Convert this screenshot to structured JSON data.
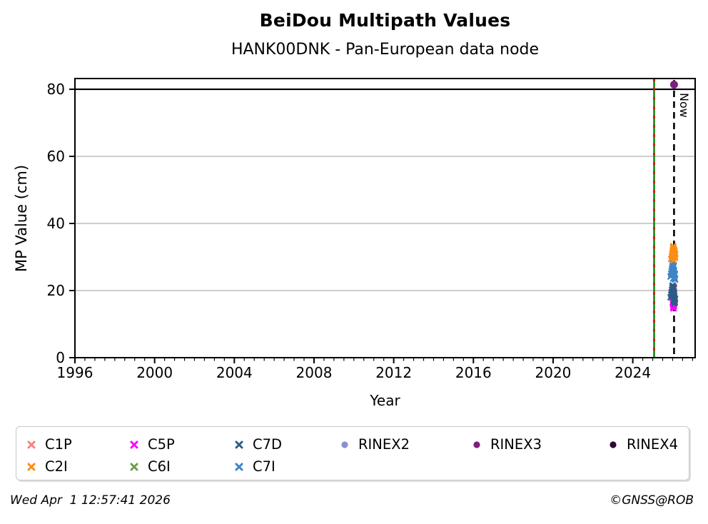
{
  "title": "BeiDou Multipath Values",
  "subtitle": "HANK00DNK - Pan-European data node",
  "footer": {
    "timestamp": "Wed Apr  1 12:57:41 2026",
    "copyright": "©GNSS@ROB"
  },
  "legend": {
    "order": [
      "C1P",
      "C5P",
      "C7D",
      "RINEX2",
      "RINEX3",
      "RINEX4",
      "C2I",
      "C6I",
      "C7I"
    ]
  },
  "chart_data": {
    "type": "scatter",
    "title": "BeiDou Multipath Values",
    "subtitle": "HANK00DNK - Pan-European data node",
    "xlabel": "Year",
    "ylabel": "MP Value (cm)",
    "xlim": [
      1996,
      2027.13
    ],
    "ylim": [
      0,
      83.2
    ],
    "xticks": [
      1996,
      2000,
      2004,
      2008,
      2012,
      2016,
      2020,
      2024
    ],
    "yticks": [
      0,
      20,
      40,
      60,
      80
    ],
    "minor_xtick_step": 0.5,
    "grid": "horizontal-gray-at-20-40-60",
    "threshold_line_y": 80,
    "vlines": [
      {
        "name": "data-start-line",
        "x": 2025.07,
        "style": "solid-with-red-dashes",
        "color_solid": "#138713",
        "color_dash": "#CC1111"
      },
      {
        "name": "now-line",
        "x": 2026.07,
        "style": "dashed",
        "color": "#000000",
        "label": "Now"
      }
    ],
    "series": [
      {
        "name": "C1P",
        "marker": "x",
        "color": "#F3837E",
        "points": [
          [
            2026.0,
            21.4
          ],
          [
            2026.03,
            21.1
          ],
          [
            2026.05,
            20.9
          ],
          [
            2026.07,
            21.2
          ],
          [
            2026.02,
            20.7
          ]
        ]
      },
      {
        "name": "C5P",
        "marker": "x",
        "color": "#FF00FF",
        "points": [
          [
            2026.0,
            16.4
          ],
          [
            2026.02,
            15.8
          ],
          [
            2026.04,
            15.2
          ],
          [
            2026.05,
            14.7
          ],
          [
            2026.07,
            15.5
          ],
          [
            2026.03,
            14.9
          ],
          [
            2026.06,
            16.1
          ]
        ]
      },
      {
        "name": "C7D",
        "marker": "x",
        "color": "#2E5C88",
        "points": [
          [
            2025.9,
            18.0
          ],
          [
            2025.93,
            18.8
          ],
          [
            2025.95,
            19.5
          ],
          [
            2025.97,
            20.2
          ],
          [
            2025.99,
            20.9
          ],
          [
            2026.0,
            21.5
          ],
          [
            2026.01,
            21.0
          ],
          [
            2026.02,
            20.5
          ],
          [
            2026.03,
            19.9
          ],
          [
            2026.04,
            19.3
          ],
          [
            2026.05,
            18.7
          ],
          [
            2026.06,
            18.1
          ],
          [
            2026.07,
            19.0
          ],
          [
            2026.08,
            18.4
          ],
          [
            2026.09,
            17.8
          ],
          [
            2026.1,
            17.2
          ],
          [
            2026.11,
            16.6
          ],
          [
            2026.12,
            17.5
          ],
          [
            2026.04,
            16.9
          ],
          [
            2026.07,
            20.7
          ],
          [
            2026.09,
            16.2
          ]
        ]
      },
      {
        "name": "RINEX2",
        "marker": "circle",
        "color": "#8E8FD0",
        "points": []
      },
      {
        "name": "RINEX3",
        "marker": "circle",
        "color": "#7D1F80",
        "points": [
          [
            2026.07,
            81.4
          ]
        ]
      },
      {
        "name": "RINEX4",
        "marker": "circle",
        "color": "#2B0A30",
        "points": []
      },
      {
        "name": "C2I",
        "marker": "x",
        "color": "#FB8C15",
        "points": [
          [
            2025.93,
            29.4
          ],
          [
            2025.96,
            30.1
          ],
          [
            2025.98,
            30.8
          ],
          [
            2026.0,
            31.3
          ],
          [
            2026.01,
            32.0
          ],
          [
            2026.02,
            32.9
          ],
          [
            2026.03,
            33.2
          ],
          [
            2026.04,
            32.5
          ],
          [
            2026.05,
            31.9
          ],
          [
            2026.06,
            31.5
          ],
          [
            2026.07,
            32.2
          ],
          [
            2026.08,
            31.1
          ],
          [
            2026.09,
            30.6
          ],
          [
            2026.1,
            31.7
          ],
          [
            2026.11,
            30.3
          ],
          [
            2026.12,
            29.8
          ],
          [
            2026.13,
            30.9
          ],
          [
            2026.05,
            29.1
          ]
        ]
      },
      {
        "name": "C6I",
        "marker": "x",
        "color": "#6B9E50",
        "points": [
          [
            2026.01,
            17.9
          ],
          [
            2026.04,
            17.4
          ],
          [
            2026.06,
            18.2
          ]
        ]
      },
      {
        "name": "C7I",
        "marker": "x",
        "color": "#3D85C6",
        "points": [
          [
            2025.9,
            24.2
          ],
          [
            2025.93,
            25.0
          ],
          [
            2025.95,
            25.8
          ],
          [
            2025.97,
            26.5
          ],
          [
            2025.99,
            27.2
          ],
          [
            2026.0,
            28.0
          ],
          [
            2026.01,
            28.6
          ],
          [
            2026.02,
            27.7
          ],
          [
            2026.03,
            26.9
          ],
          [
            2026.04,
            26.2
          ],
          [
            2026.05,
            25.5
          ],
          [
            2026.06,
            24.8
          ],
          [
            2026.07,
            26.0
          ],
          [
            2026.08,
            25.2
          ],
          [
            2026.09,
            24.5
          ],
          [
            2026.1,
            23.8
          ],
          [
            2026.11,
            24.9
          ],
          [
            2026.12,
            23.3
          ],
          [
            2026.03,
            23.6
          ],
          [
            2026.06,
            27.4
          ]
        ]
      }
    ],
    "draw_order": [
      "C6I",
      "C1P",
      "C5P",
      "C7D",
      "C7I",
      "C2I",
      "RINEX2",
      "RINEX3",
      "RINEX4"
    ],
    "legend_position": "bottom"
  }
}
